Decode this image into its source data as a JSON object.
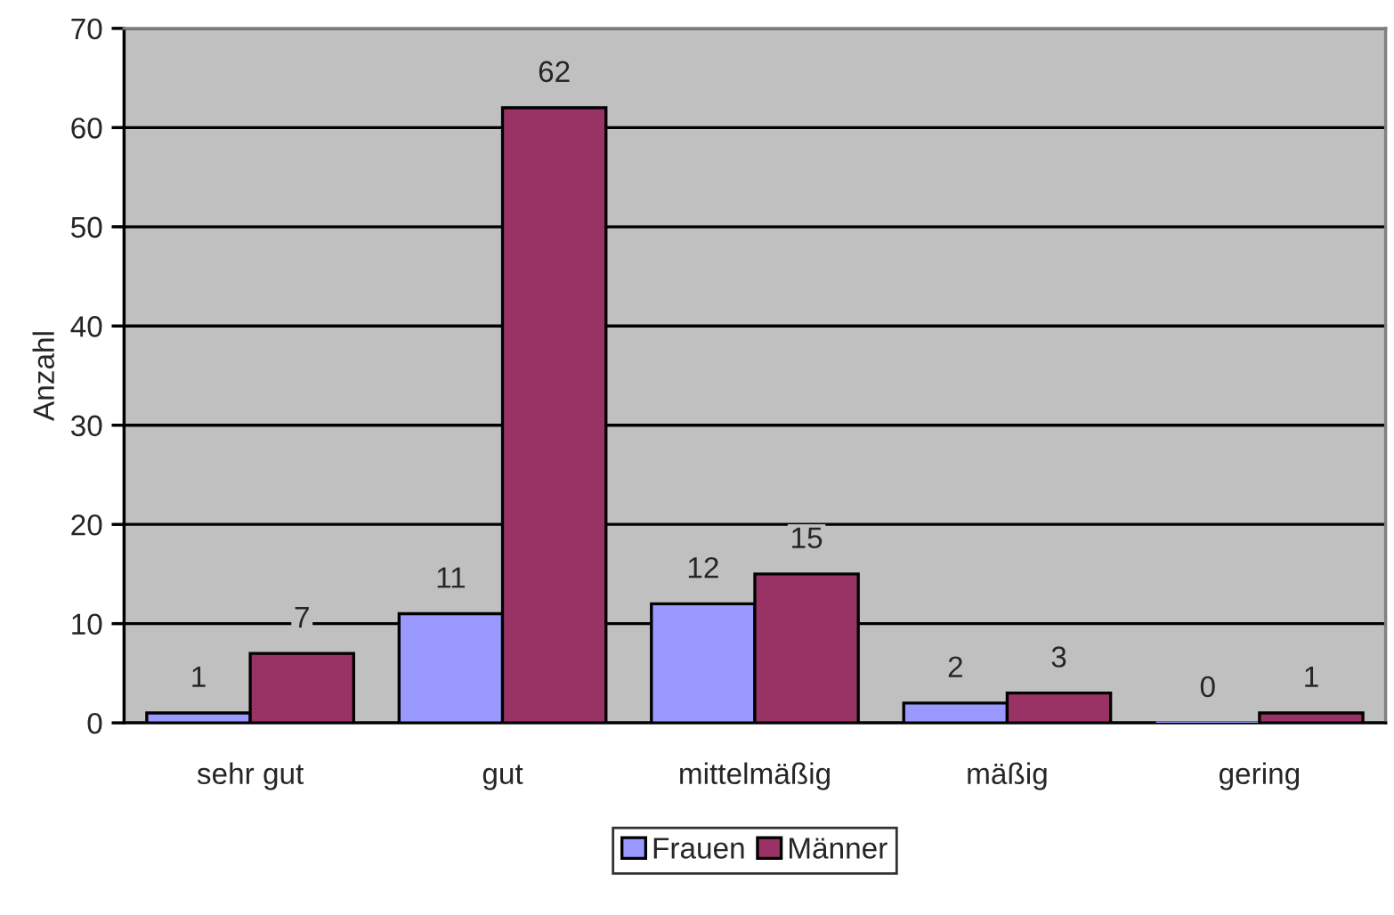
{
  "chart_data": {
    "type": "bar",
    "ylabel": "Anzahl",
    "categories": [
      "sehr gut",
      "gut",
      "mittelmäßig",
      "mäßig",
      "gering"
    ],
    "series": [
      {
        "name": "Frauen",
        "color": "#9999ff",
        "values": [
          1,
          11,
          12,
          2,
          0
        ]
      },
      {
        "name": "Männer",
        "color": "#993366",
        "values": [
          7,
          62,
          15,
          3,
          1
        ]
      }
    ],
    "ylim": [
      0,
      70
    ],
    "yticks": [
      0,
      10,
      20,
      30,
      40,
      50,
      60,
      70
    ],
    "grid": "y",
    "legend": "bottom",
    "data_labels": true
  }
}
